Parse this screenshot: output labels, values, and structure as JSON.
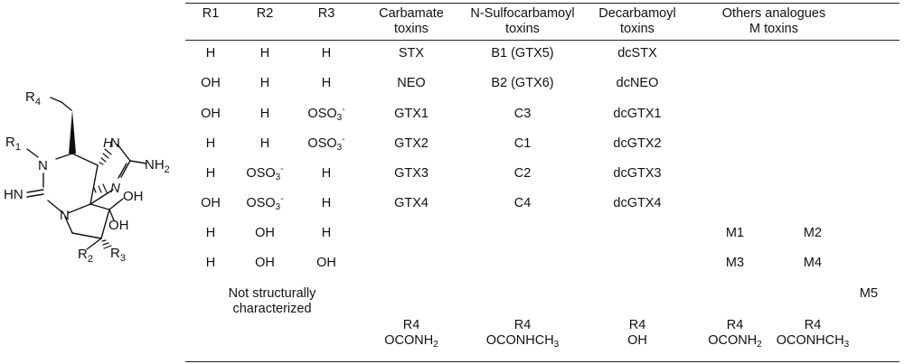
{
  "structure": {
    "labels": {
      "r4": "R",
      "r4_sub": "4",
      "r1": "R",
      "r1_sub": "1",
      "n1": "N",
      "n_ring": "N",
      "n_lower": "N",
      "h_nh": "H",
      "n_nh": "N",
      "nh2": "NH",
      "nh2_sub": "2",
      "imine": "HN",
      "oh_a": "OH",
      "oh_b": "OH",
      "r2": "R",
      "r2_sub": "2",
      "r3": "R",
      "r3_sub": "3"
    }
  },
  "table": {
    "headers": [
      [
        "R1"
      ],
      [
        "R2"
      ],
      [
        "R3"
      ],
      [
        "Carbamate",
        "toxins"
      ],
      [
        "N-Sulfocarbamoyl",
        "toxins"
      ],
      [
        "Decarbamoyl",
        "toxins"
      ],
      [
        "Others analogues",
        "M toxins"
      ]
    ],
    "rows": [
      {
        "r1": "H",
        "r2": "H",
        "r3": "H",
        "carbamate": "STX",
        "sulfo": "B1 (GTX5)",
        "decarb": "dcSTX",
        "m1": "",
        "m2": ""
      },
      {
        "r1": "OH",
        "r2": "H",
        "r3": "H",
        "carbamate": "NEO",
        "sulfo": "B2 (GTX6)",
        "decarb": "dcNEO",
        "m1": "",
        "m2": ""
      },
      {
        "r1": "OH",
        "r2": "H",
        "r3": "OSO3-",
        "carbamate": "GTX1",
        "sulfo": "C3",
        "decarb": "dcGTX1",
        "m1": "",
        "m2": ""
      },
      {
        "r1": "H",
        "r2": "H",
        "r3": "OSO3-",
        "carbamate": "GTX2",
        "sulfo": "C1",
        "decarb": "dcGTX2",
        "m1": "",
        "m2": ""
      },
      {
        "r1": "H",
        "r2": "OSO3-",
        "r3": "H",
        "carbamate": "GTX3",
        "sulfo": "C2",
        "decarb": "dcGTX3",
        "m1": "",
        "m2": ""
      },
      {
        "r1": "OH",
        "r2": "OSO3-",
        "r3": "H",
        "carbamate": "GTX4",
        "sulfo": "C4",
        "decarb": "dcGTX4",
        "m1": "",
        "m2": ""
      },
      {
        "r1": "H",
        "r2": "OH",
        "r3": "H",
        "carbamate": "",
        "sulfo": "",
        "decarb": "",
        "m1": "M1",
        "m2": "M2"
      },
      {
        "r1": "H",
        "r2": "OH",
        "r3": "OH",
        "carbamate": "",
        "sulfo": "",
        "decarb": "",
        "m1": "M3",
        "m2": "M4"
      }
    ],
    "not_characterized": [
      "Not structurally",
      "characterized"
    ],
    "m5": "M5",
    "r4_row": {
      "carbamate": [
        "R4",
        "OCONH2"
      ],
      "sulfo": [
        "R4",
        "OCONHCH3"
      ],
      "decarb": [
        "R4",
        "OH"
      ],
      "m1": [
        "R4",
        "OCONH2"
      ],
      "m2": [
        "R4",
        "OCONHCH3"
      ]
    }
  }
}
